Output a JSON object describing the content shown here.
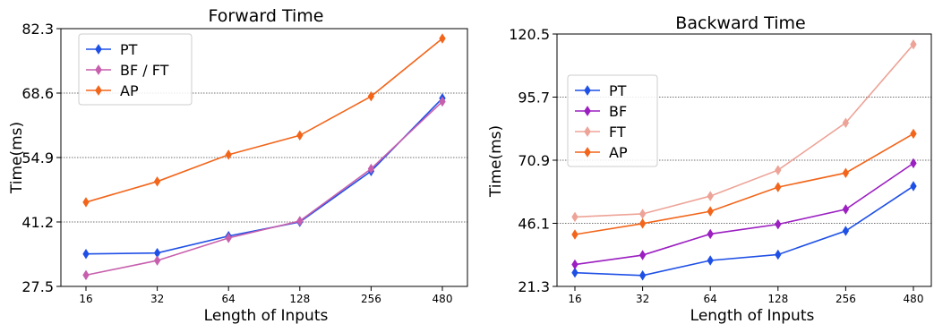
{
  "chart_data": [
    {
      "type": "line",
      "title": "Forward Time",
      "xlabel": "Length of Inputs",
      "ylabel": "Time(ms)",
      "categories": [
        "16",
        "32",
        "64",
        "128",
        "256",
        "480"
      ],
      "ylim": [
        27.5,
        82.3
      ],
      "yticks": [
        "27.5",
        "41.2",
        "54.9",
        "68.6",
        "82.3"
      ],
      "grid": "horizontal dotted",
      "legend_position": "top-left",
      "series": [
        {
          "name": "PT",
          "color": "#1f50e6",
          "values": [
            34.4,
            34.6,
            38.2,
            41.2,
            52.0,
            67.5
          ]
        },
        {
          "name": "BF / FT",
          "color": "#c75fad",
          "values": [
            29.9,
            33.0,
            37.8,
            41.4,
            52.5,
            66.8
          ]
        },
        {
          "name": "AP",
          "color": "#f2651a",
          "values": [
            45.4,
            49.8,
            55.5,
            59.6,
            67.9,
            80.2
          ]
        }
      ]
    },
    {
      "type": "line",
      "title": "Backward Time",
      "xlabel": "Length of Inputs",
      "ylabel": "Time(ms)",
      "categories": [
        "16",
        "32",
        "64",
        "128",
        "256",
        "480"
      ],
      "ylim": [
        21.3,
        120.5
      ],
      "yticks": [
        "21.3",
        "46.1",
        "70.9",
        "95.7",
        "120.5"
      ],
      "grid": "horizontal dotted",
      "legend_position": "upper-left",
      "series": [
        {
          "name": "PT",
          "color": "#1f50e6",
          "values": [
            26.7,
            25.6,
            31.5,
            33.8,
            43.1,
            60.7
          ]
        },
        {
          "name": "BF",
          "color": "#9b1fc1",
          "values": [
            29.9,
            33.6,
            41.9,
            45.7,
            51.6,
            69.7
          ]
        },
        {
          "name": "FT",
          "color": "#eda397",
          "values": [
            48.6,
            49.8,
            56.8,
            67.0,
            85.6,
            116.4
          ]
        },
        {
          "name": "AP",
          "color": "#f2651a",
          "values": [
            41.7,
            46.0,
            50.8,
            60.3,
            65.9,
            81.3
          ]
        }
      ]
    }
  ]
}
